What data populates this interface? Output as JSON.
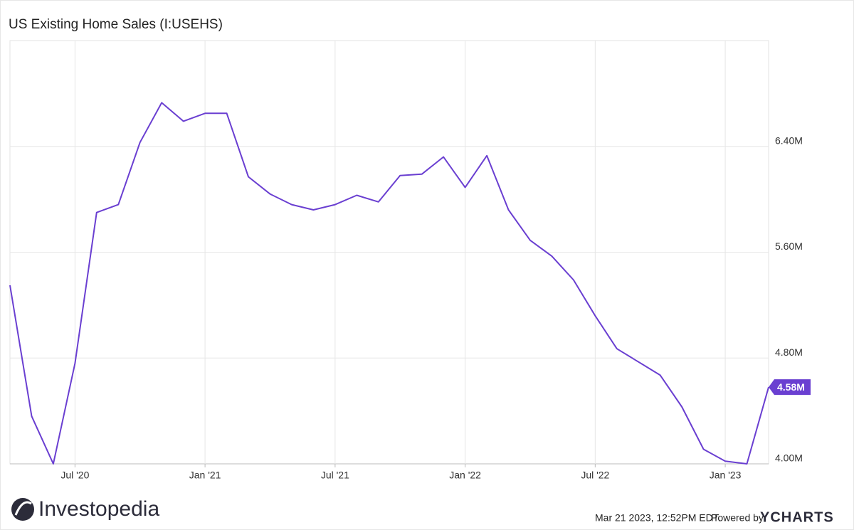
{
  "chart_data": {
    "type": "line",
    "title": "US Existing Home Sales (I:USEHS)",
    "x": [
      "2020-03",
      "2020-04",
      "2020-05",
      "2020-06",
      "2020-07",
      "2020-08",
      "2020-09",
      "2020-10",
      "2020-11",
      "2020-12",
      "2021-01",
      "2021-02",
      "2021-03",
      "2021-04",
      "2021-05",
      "2021-06",
      "2021-07",
      "2021-08",
      "2021-09",
      "2021-10",
      "2021-11",
      "2021-12",
      "2022-01",
      "2022-02",
      "2022-03",
      "2022-04",
      "2022-05",
      "2022-06",
      "2022-07",
      "2022-08",
      "2022-09",
      "2022-10",
      "2022-11",
      "2022-12",
      "2023-01",
      "2023-02"
    ],
    "series": [
      {
        "name": "US Existing Home Sales",
        "color": "#6a3fd1",
        "values": [
          5.35,
          4.36,
          4.0,
          4.76,
          5.9,
          5.96,
          6.43,
          6.73,
          6.59,
          6.65,
          6.65,
          6.17,
          6.04,
          5.96,
          5.92,
          5.96,
          6.03,
          5.98,
          6.18,
          6.19,
          6.32,
          6.09,
          6.33,
          5.92,
          5.69,
          5.57,
          5.39,
          5.12,
          4.87,
          4.77,
          4.67,
          4.43,
          4.11,
          4.02,
          4.0,
          4.58
        ],
        "value_labels": [
          null,
          null,
          null,
          null,
          null,
          null,
          null,
          null,
          null,
          null,
          null,
          null,
          null,
          null,
          null,
          null,
          null,
          null,
          null,
          null,
          null,
          null,
          null,
          null,
          null,
          null,
          null,
          null,
          null,
          null,
          null,
          null,
          null,
          null,
          null,
          "4.58M"
        ]
      }
    ],
    "xlim": [
      "2020-04",
      "2023-03"
    ],
    "xticks": [
      {
        "value": "2020-07",
        "label": "Jul '20"
      },
      {
        "value": "2021-01",
        "label": "Jan '21"
      },
      {
        "value": "2021-07",
        "label": "Jul '21"
      },
      {
        "value": "2022-01",
        "label": "Jan '22"
      },
      {
        "value": "2022-07",
        "label": "Jul '22"
      },
      {
        "value": "2023-01",
        "label": "Jan '23"
      }
    ],
    "ylim": [
      4.0,
      7.2
    ],
    "yticks": [
      {
        "value": 4.0,
        "label": "4.00M"
      },
      {
        "value": 4.8,
        "label": "4.80M"
      },
      {
        "value": 5.6,
        "label": "5.60M"
      },
      {
        "value": 6.4,
        "label": "6.40M"
      }
    ],
    "grid": true
  },
  "footer": {
    "brand": "Investopedia",
    "timestamp": "Mar 21 2023, 12:52PM EDT.",
    "powered": "Powered by",
    "source": "YCHARTS"
  }
}
